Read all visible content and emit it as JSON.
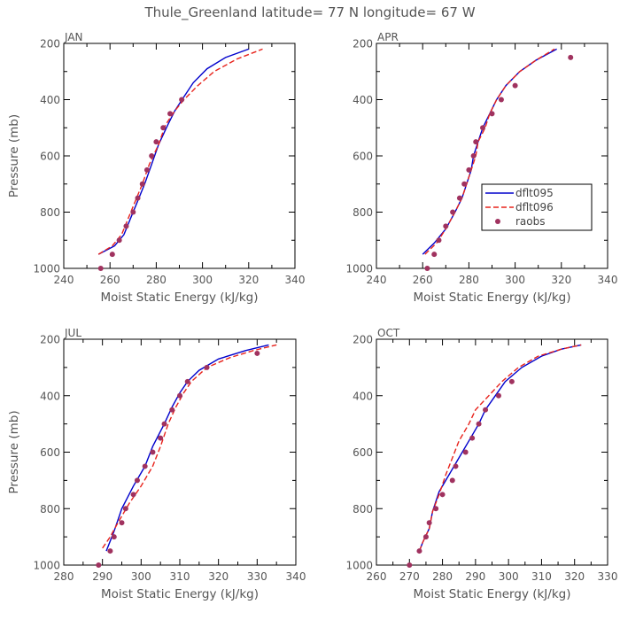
{
  "title": "Thule_Greenland  latitude= 77 N longitude= 67 W",
  "colors": {
    "dflt095": "#0000cc",
    "dflt096": "#e8231c",
    "raobs": "#a0325f"
  },
  "legend": [
    "dflt095",
    "dflt096",
    "raobs"
  ],
  "chart_data": [
    {
      "type": "line",
      "panel": "JAN",
      "xlabel": "Moist Static Energy (kJ/kg)",
      "ylabel": "Pressure (mb)",
      "xlim": [
        240,
        340
      ],
      "xticks": [
        240,
        260,
        280,
        300,
        320,
        340
      ],
      "ylim": [
        1000,
        200
      ],
      "yticks": [
        200,
        400,
        600,
        800,
        1000
      ],
      "series": [
        {
          "name": "dflt095",
          "points": [
            [
              255,
              950
            ],
            [
              262,
              920
            ],
            [
              266,
              880
            ],
            [
              269,
              820
            ],
            [
              272,
              760
            ],
            [
              275,
              700
            ],
            [
              278,
              630
            ],
            [
              281,
              560
            ],
            [
              285,
              490
            ],
            [
              288,
              440
            ],
            [
              292,
              390
            ],
            [
              296,
              340
            ],
            [
              302,
              290
            ],
            [
              310,
              250
            ],
            [
              320,
              220
            ]
          ]
        },
        {
          "name": "dflt096",
          "points": [
            [
              255,
              950
            ],
            [
              261,
              920
            ],
            [
              265,
              880
            ],
            [
              268,
              820
            ],
            [
              271,
              760
            ],
            [
              274,
              700
            ],
            [
              277,
              630
            ],
            [
              281,
              560
            ],
            [
              284,
              490
            ],
            [
              288,
              440
            ],
            [
              292,
              400
            ],
            [
              298,
              350
            ],
            [
              305,
              300
            ],
            [
              315,
              255
            ],
            [
              326,
              220
            ]
          ]
        },
        {
          "name": "raobs",
          "points": [
            [
              256,
              1000
            ],
            [
              261,
              950
            ],
            [
              264,
              900
            ],
            [
              267,
              850
            ],
            [
              270,
              800
            ],
            [
              272,
              750
            ],
            [
              274,
              700
            ],
            [
              276,
              650
            ],
            [
              278,
              600
            ],
            [
              280,
              550
            ],
            [
              283,
              500
            ],
            [
              286,
              450
            ],
            [
              291,
              400
            ]
          ]
        }
      ]
    },
    {
      "type": "line",
      "panel": "APR",
      "xlabel": "Moist Static Energy (kJ/kg)",
      "ylabel": "",
      "xlim": [
        240,
        340
      ],
      "xticks": [
        240,
        260,
        280,
        300,
        320,
        340
      ],
      "ylim": [
        1000,
        200
      ],
      "yticks": [
        200,
        400,
        600,
        800,
        1000
      ],
      "series": [
        {
          "name": "dflt095",
          "points": [
            [
              260,
              950
            ],
            [
              265,
              910
            ],
            [
              270,
              860
            ],
            [
              274,
              800
            ],
            [
              277,
              750
            ],
            [
              279,
              700
            ],
            [
              281,
              650
            ],
            [
              282,
              600
            ],
            [
              284,
              550
            ],
            [
              286,
              500
            ],
            [
              289,
              450
            ],
            [
              292,
              400
            ],
            [
              296,
              350
            ],
            [
              302,
              300
            ],
            [
              309,
              260
            ],
            [
              318,
              220
            ]
          ]
        },
        {
          "name": "dflt096",
          "points": [
            [
              261,
              950
            ],
            [
              266,
              910
            ],
            [
              270,
              860
            ],
            [
              274,
              800
            ],
            [
              277,
              750
            ],
            [
              279,
              700
            ],
            [
              281,
              650
            ],
            [
              283,
              600
            ],
            [
              284,
              550
            ],
            [
              287,
              500
            ],
            [
              289,
              450
            ],
            [
              292,
              400
            ],
            [
              296,
              350
            ],
            [
              302,
              300
            ],
            [
              309,
              260
            ],
            [
              317,
              220
            ]
          ]
        },
        {
          "name": "raobs",
          "points": [
            [
              262,
              1000
            ],
            [
              265,
              950
            ],
            [
              267,
              900
            ],
            [
              270,
              850
            ],
            [
              273,
              800
            ],
            [
              276,
              750
            ],
            [
              278,
              700
            ],
            [
              280,
              650
            ],
            [
              282,
              600
            ],
            [
              283,
              550
            ],
            [
              286,
              500
            ],
            [
              290,
              450
            ],
            [
              294,
              400
            ],
            [
              300,
              350
            ],
            [
              324,
              250
            ]
          ]
        }
      ]
    },
    {
      "type": "line",
      "panel": "JUL",
      "xlabel": "Moist Static Energy (kJ/kg)",
      "ylabel": "Pressure (mb)",
      "xlim": [
        280,
        340
      ],
      "xticks": [
        280,
        290,
        300,
        310,
        320,
        330,
        340
      ],
      "ylim": [
        1000,
        200
      ],
      "yticks": [
        200,
        400,
        600,
        800,
        1000
      ],
      "series": [
        {
          "name": "dflt095",
          "points": [
            [
              291,
              950
            ],
            [
              293,
              880
            ],
            [
              295,
              800
            ],
            [
              298,
              720
            ],
            [
              301,
              650
            ],
            [
              303,
              580
            ],
            [
              306,
              500
            ],
            [
              308,
              440
            ],
            [
              310,
              390
            ],
            [
              312,
              350
            ],
            [
              315,
              310
            ],
            [
              320,
              270
            ],
            [
              327,
              240
            ],
            [
              333,
              220
            ]
          ]
        },
        {
          "name": "dflt096",
          "points": [
            [
              290,
              940
            ],
            [
              292,
              900
            ],
            [
              294,
              850
            ],
            [
              297,
              780
            ],
            [
              300,
              720
            ],
            [
              303,
              650
            ],
            [
              305,
              580
            ],
            [
              307,
              500
            ],
            [
              309,
              440
            ],
            [
              311,
              390
            ],
            [
              313,
              350
            ],
            [
              317,
              300
            ],
            [
              323,
              265
            ],
            [
              329,
              240
            ],
            [
              335,
              220
            ]
          ]
        },
        {
          "name": "raobs",
          "points": [
            [
              289,
              1000
            ],
            [
              292,
              950
            ],
            [
              293,
              900
            ],
            [
              295,
              850
            ],
            [
              296,
              800
            ],
            [
              298,
              750
            ],
            [
              299,
              700
            ],
            [
              301,
              650
            ],
            [
              303,
              600
            ],
            [
              305,
              550
            ],
            [
              306,
              500
            ],
            [
              308,
              450
            ],
            [
              310,
              400
            ],
            [
              312,
              350
            ],
            [
              317,
              300
            ],
            [
              330,
              250
            ]
          ]
        }
      ]
    },
    {
      "type": "line",
      "panel": "OCT",
      "xlabel": "Moist Static Energy (kJ/kg)",
      "ylabel": "",
      "xlim": [
        260,
        330
      ],
      "xticks": [
        260,
        270,
        280,
        290,
        300,
        310,
        320,
        330
      ],
      "ylim": [
        1000,
        200
      ],
      "yticks": [
        200,
        400,
        600,
        800,
        1000
      ],
      "series": [
        {
          "name": "dflt095",
          "points": [
            [
              273,
              950
            ],
            [
              274,
              920
            ],
            [
              276,
              870
            ],
            [
              277,
              810
            ],
            [
              279,
              740
            ],
            [
              282,
              680
            ],
            [
              285,
              620
            ],
            [
              288,
              560
            ],
            [
              291,
              500
            ],
            [
              293,
              450
            ],
            [
              296,
              400
            ],
            [
              299,
              350
            ],
            [
              304,
              300
            ],
            [
              310,
              260
            ],
            [
              316,
              235
            ],
            [
              322,
              220
            ]
          ]
        },
        {
          "name": "dflt096",
          "points": [
            [
              273,
              950
            ],
            [
              274,
              920
            ],
            [
              276,
              870
            ],
            [
              277,
              810
            ],
            [
              279,
              750
            ],
            [
              281,
              680
            ],
            [
              283,
              620
            ],
            [
              285,
              560
            ],
            [
              288,
              500
            ],
            [
              290,
              450
            ],
            [
              294,
              400
            ],
            [
              298,
              350
            ],
            [
              303,
              300
            ],
            [
              309,
              260
            ],
            [
              316,
              235
            ],
            [
              322,
              220
            ]
          ]
        },
        {
          "name": "raobs",
          "points": [
            [
              270,
              1000
            ],
            [
              273,
              950
            ],
            [
              275,
              900
            ],
            [
              276,
              850
            ],
            [
              278,
              800
            ],
            [
              280,
              750
            ],
            [
              283,
              700
            ],
            [
              284,
              650
            ],
            [
              287,
              600
            ],
            [
              289,
              550
            ],
            [
              291,
              500
            ],
            [
              293,
              450
            ],
            [
              297,
              400
            ],
            [
              301,
              350
            ]
          ]
        }
      ]
    }
  ]
}
